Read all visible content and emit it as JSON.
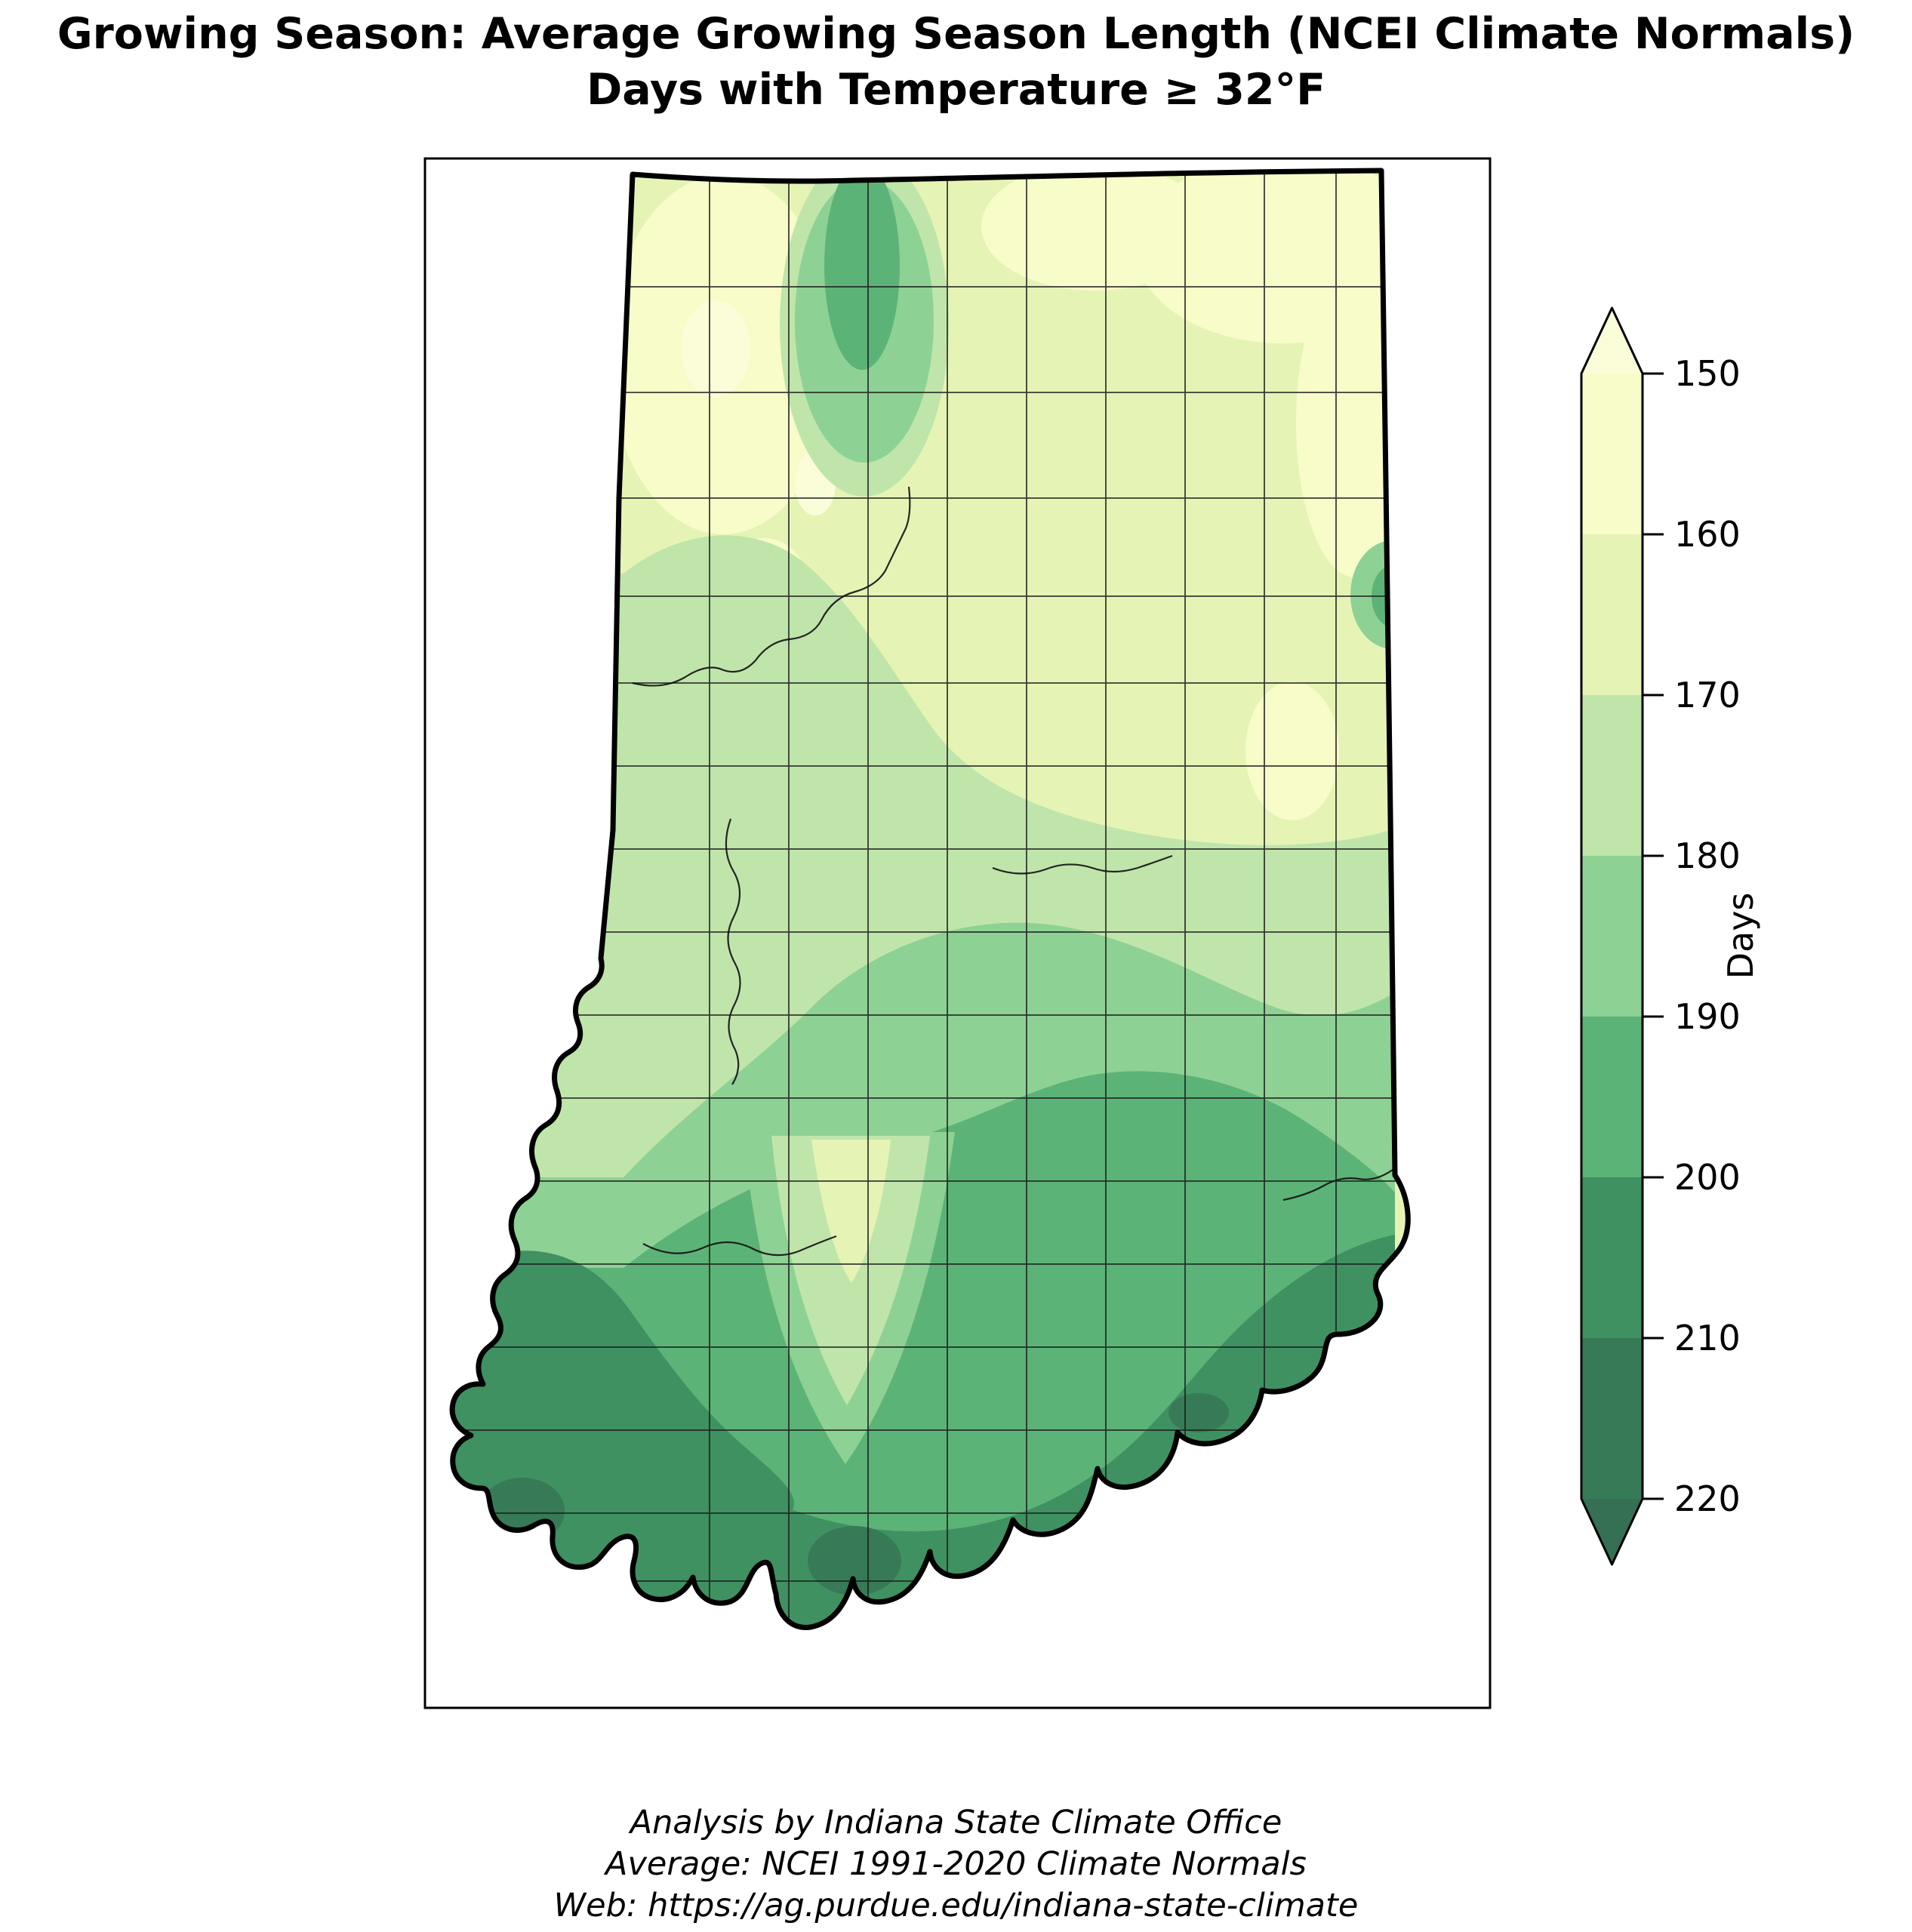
{
  "figure": {
    "title_line1": "Growing Season: Average Growing Season Length (NCEI Climate Normals)",
    "title_line2": "Days with Temperature ≥ 32°F",
    "footer_line1": "Analysis by Indiana State Climate Office",
    "footer_line2": "Average: NCEI 1991-2020 Climate Normals",
    "footer_line3": "Web: https://ag.purdue.edu/indiana-state-climate"
  },
  "colorbar": {
    "label": "Days",
    "tick_labels": [
      "150",
      "160",
      "170",
      "180",
      "190",
      "200",
      "210",
      "220"
    ],
    "under_arrow_color": "#fbfdd9",
    "segment_colors_top_to_bottom": [
      "#f8fcc9",
      "#e5f4b5",
      "#c0e5ab",
      "#8ed194",
      "#5cb377",
      "#3f9161",
      "#377a57"
    ],
    "over_arrow_color": "#356f54",
    "outline_color": "#000000"
  },
  "map": {
    "region": "Indiana",
    "band_colors": {
      "under_150": "#fbfdd9",
      "150_160": "#f8fcc9",
      "160_170": "#e5f4b5",
      "170_180": "#c0e5ab",
      "180_190": "#8ed194",
      "190_200": "#5cb377",
      "200_210": "#3f9161",
      "210_220": "#377a57",
      "over_220": "#356f54"
    },
    "state_outline_color": "#000000",
    "county_line_color": "#1a1a1a",
    "river_line_color": "#111111"
  },
  "chart_data": {
    "type": "heatmap",
    "title": "Growing Season: Average Growing Season Length (NCEI Climate Normals)",
    "subtitle": "Days with Temperature ≥ 32°F",
    "units": "Days",
    "region": "Indiana (state contour map with county boundaries)",
    "levels": [
      150,
      160,
      170,
      180,
      190,
      200,
      210,
      220
    ],
    "legend_position": "right",
    "legend_orientation": "vertical, values increase downward, arrow extensions at both ends",
    "pattern": "Average growing season length increases from about 150-170 days in northern Indiana to about 200-220+ days along the Ohio River in the far south; local longer-season spots appear near the north-central and east-central cities, and a cooler short-season tongue extends down the south-central hill country."
  }
}
